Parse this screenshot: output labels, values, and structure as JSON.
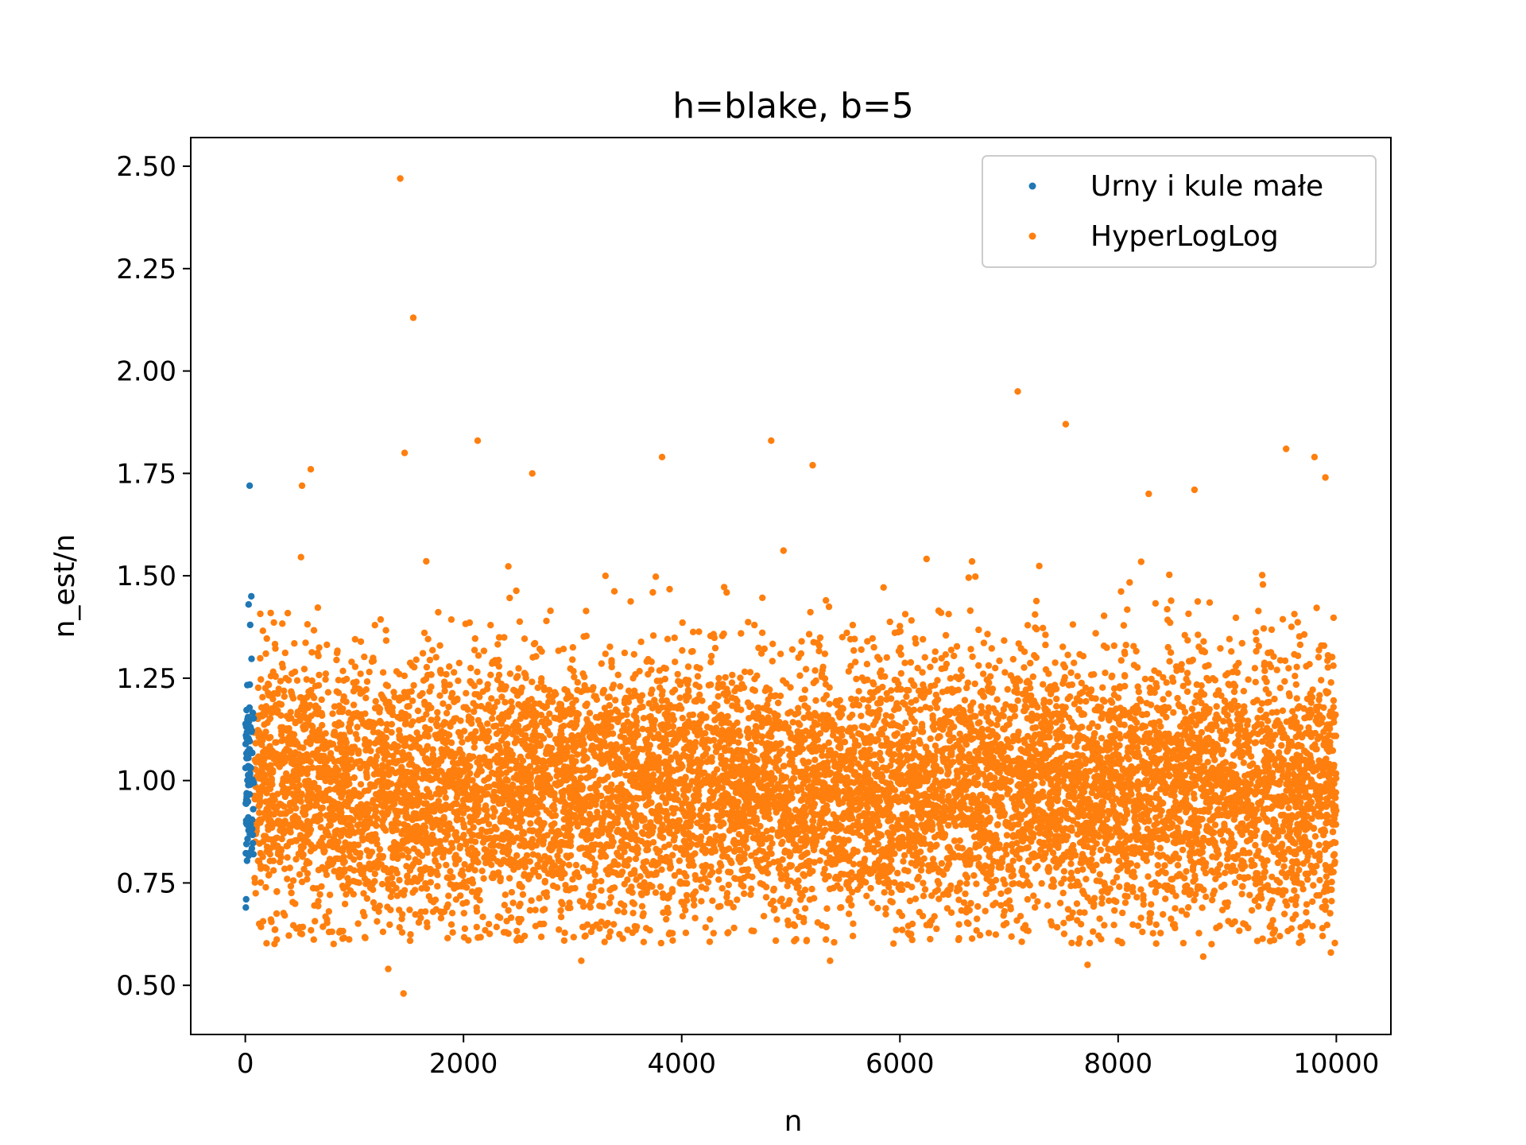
{
  "chart_data": {
    "type": "scatter",
    "title": "h=blake, b=5",
    "xlabel": "n",
    "ylabel": "n_est/n",
    "xlim": [
      -500,
      10500
    ],
    "ylim": [
      0.38,
      2.57
    ],
    "xticks": [
      0,
      2000,
      4000,
      6000,
      8000,
      10000
    ],
    "xtick_labels": [
      "0",
      "2000",
      "4000",
      "6000",
      "8000",
      "10000"
    ],
    "yticks": [
      0.5,
      0.75,
      1.0,
      1.25,
      1.5,
      1.75,
      2.0,
      2.25,
      2.5
    ],
    "ytick_labels": [
      "0.50",
      "0.75",
      "1.00",
      "1.25",
      "1.50",
      "1.75",
      "2.00",
      "2.25",
      "2.50"
    ],
    "grid": false,
    "legend_position": "top-right",
    "series": [
      {
        "name": "Urny i kule małe",
        "color": "#1f77b4",
        "x_range": [
          1,
          80
        ],
        "center": 1.0,
        "spread": 0.12,
        "count": 80,
        "notable_points": [
          {
            "x": 40,
            "y": 1.72
          },
          {
            "x": 55,
            "y": 1.45
          },
          {
            "x": 30,
            "y": 1.43
          },
          {
            "x": 45,
            "y": 1.38
          },
          {
            "x": 5,
            "y": 0.69
          },
          {
            "x": 8,
            "y": 0.71
          }
        ]
      },
      {
        "name": "HyperLogLog",
        "color": "#ff7f0e",
        "x_range": [
          80,
          10000
        ],
        "center": 0.98,
        "spread": 0.16,
        "count": 9920,
        "notable_points": [
          {
            "x": 1420,
            "y": 2.47
          },
          {
            "x": 1540,
            "y": 2.13
          },
          {
            "x": 7080,
            "y": 1.95
          },
          {
            "x": 7520,
            "y": 1.87
          },
          {
            "x": 4820,
            "y": 1.83
          },
          {
            "x": 2130,
            "y": 1.83
          },
          {
            "x": 1460,
            "y": 1.8
          },
          {
            "x": 9540,
            "y": 1.81
          },
          {
            "x": 9800,
            "y": 1.79
          },
          {
            "x": 3820,
            "y": 1.79
          },
          {
            "x": 5200,
            "y": 1.77
          },
          {
            "x": 600,
            "y": 1.76
          },
          {
            "x": 9900,
            "y": 1.74
          },
          {
            "x": 2630,
            "y": 1.75
          },
          {
            "x": 520,
            "y": 1.72
          },
          {
            "x": 8700,
            "y": 1.71
          },
          {
            "x": 8280,
            "y": 1.7
          },
          {
            "x": 7720,
            "y": 0.55
          },
          {
            "x": 5360,
            "y": 0.56
          },
          {
            "x": 1310,
            "y": 0.54
          },
          {
            "x": 1450,
            "y": 0.48
          },
          {
            "x": 3080,
            "y": 0.56
          },
          {
            "x": 8780,
            "y": 0.57
          },
          {
            "x": 9950,
            "y": 0.58
          }
        ]
      }
    ]
  }
}
